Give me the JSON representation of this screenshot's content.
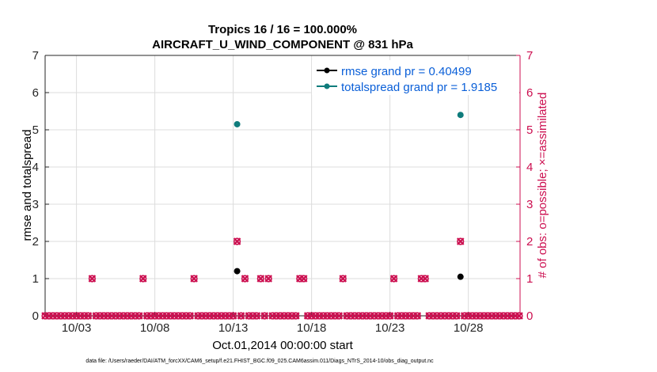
{
  "chart_data": {
    "type": "scatter",
    "title_line1": "Tropics 16 / 16 = 100.000%",
    "title_line2": "AIRCRAFT_U_WIND_COMPONENT @ 831 hPa",
    "xlabel": "Oct.01,2014 00:00:00 start",
    "ylabel_left": "rmse and totalspread",
    "ylabel_right": "# of obs: o=possible; ×=assimilated",
    "xlim": [
      0,
      30.3
    ],
    "ylim": [
      0,
      7
    ],
    "x_ticks": [
      {
        "x": 2,
        "label": "10/03"
      },
      {
        "x": 7,
        "label": "10/08"
      },
      {
        "x": 12,
        "label": "10/13"
      },
      {
        "x": 17,
        "label": "10/18"
      },
      {
        "x": 22,
        "label": "10/23"
      },
      {
        "x": 27,
        "label": "10/28"
      }
    ],
    "y_ticks": [
      0,
      1,
      2,
      3,
      4,
      5,
      6,
      7
    ],
    "legend": [
      {
        "label": "rmse grand pr = 0.40499",
        "color": "#000000"
      },
      {
        "label": "totalspread grand pr = 1.9185",
        "color": "#0f7c7c"
      }
    ],
    "series": [
      {
        "name": "rmse grand pr = 0.40499",
        "color": "#000000",
        "points": [
          [
            12.25,
            1.2
          ],
          [
            26.5,
            1.05
          ]
        ]
      },
      {
        "name": "totalspread grand pr = 1.9185",
        "color": "#0f7c7c",
        "points": [
          [
            12.25,
            5.15
          ],
          [
            26.5,
            5.4
          ]
        ]
      }
    ],
    "obs_series": {
      "color": "#cc0f50",
      "step": 0.25,
      "nonzero": [
        [
          3.0,
          1
        ],
        [
          6.25,
          1
        ],
        [
          9.5,
          1
        ],
        [
          12.25,
          2
        ],
        [
          12.75,
          1
        ],
        [
          13.75,
          1
        ],
        [
          14.25,
          1
        ],
        [
          16.25,
          1
        ],
        [
          16.5,
          1
        ],
        [
          19.0,
          1
        ],
        [
          22.25,
          1
        ],
        [
          24.0,
          1
        ],
        [
          24.25,
          1
        ],
        [
          26.5,
          2
        ]
      ]
    },
    "colors": {
      "axis": "#262626",
      "grid": "#dcdcdc",
      "right_axis": "#cc0f50",
      "legend_text": "#0a5fd8"
    },
    "footer": "data file: /Users/raeder/DAI/ATM_forcXX/CAM6_setup/f.e21.FHIST_BGC.f09_025.CAM6assim.011/Diags_NTrS_2014-10/obs_diag_output.nc"
  }
}
